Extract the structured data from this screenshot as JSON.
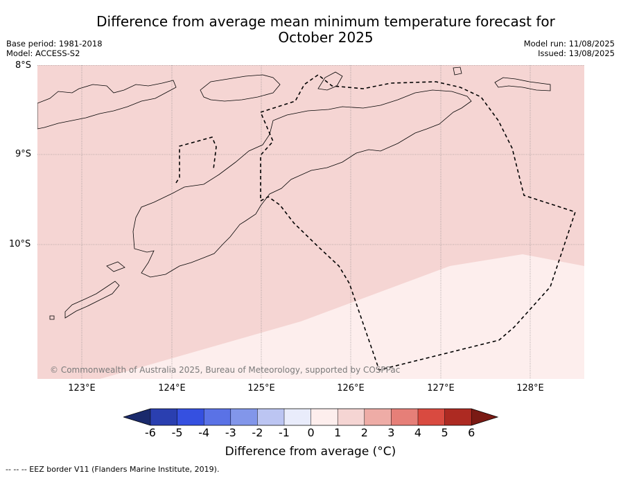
{
  "title_line1": "Difference from average mean minimum temperature forecast for",
  "title_line2": "October 2025",
  "base_period": "Base period: 1981-2018",
  "model": "Model: ACCESS-S2",
  "model_run": "Model run: 11/08/2025",
  "issued": "Issued: 13/08/2025",
  "lat_labels": [
    "8°S",
    "9°S",
    "10°S"
  ],
  "lon_labels": [
    "123°E",
    "124°E",
    "125°E",
    "126°E",
    "127°E",
    "128°E"
  ],
  "copyright": "© Commonwealth of Australia 2025, Bureau of Meteorology, supported by COSPPac",
  "colorbar": {
    "title": "Difference from average (°C)",
    "ticks": [
      "-6",
      "-5",
      "-4",
      "-3",
      "-2",
      "-1",
      "0",
      "1",
      "2",
      "3",
      "4",
      "5",
      "6"
    ],
    "colors": [
      "#1a2a6c",
      "#2a3fb0",
      "#3550e0",
      "#5a72e6",
      "#8296ea",
      "#bcc5f2",
      "#e9ecfb",
      "#fdeeed",
      "#f5d5d3",
      "#eeaca6",
      "#e67f78",
      "#d94a40",
      "#ad2a22",
      "#7a1a14"
    ]
  },
  "footnote": "--  --  -- EEZ border V11 (Flanders Marine Institute, 2019).",
  "chart_data": {
    "type": "heatmap",
    "variable": "Difference from average mean minimum temperature (°C)",
    "lon_range": [
      122.5,
      128.6
    ],
    "lat_range": [
      -11.5,
      -8.0
    ],
    "categories_present": [
      {
        "range": "0 to 1",
        "color": "#fdeeed",
        "region": "south-east"
      },
      {
        "range": "1 to 2",
        "color": "#f5d5d3",
        "region": "north and west (most of area)"
      }
    ],
    "grid": true
  }
}
